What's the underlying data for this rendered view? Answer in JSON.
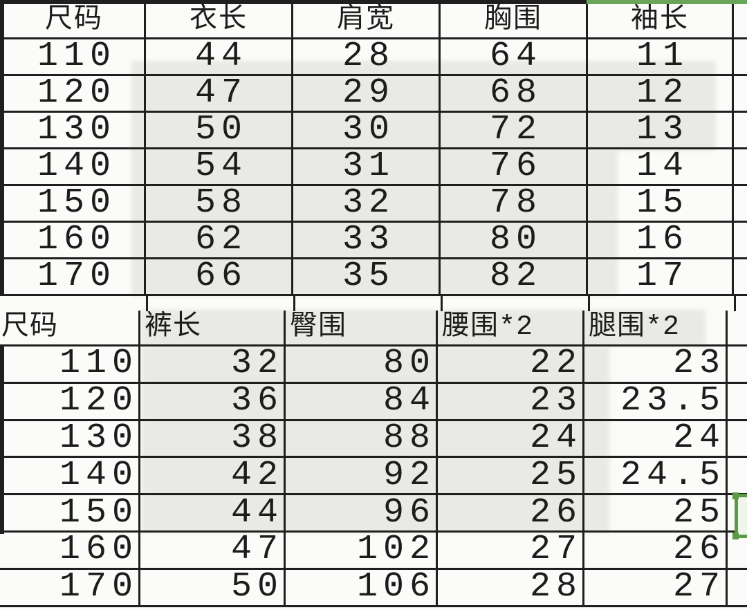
{
  "colors": {
    "grid_line": "#1f1f1f",
    "background": "#fbfbf9",
    "scan_shade": "#e9e9e5",
    "selection_green": "#5b9a47",
    "selection_fill": "#f0f5ec",
    "text": "#1c1c1c"
  },
  "chart_data": [
    {
      "type": "table",
      "columns": [
        "尺码",
        "衣长",
        "肩宽",
        "胸围",
        "袖长"
      ],
      "rows": [
        [
          "110",
          "44",
          "28",
          "64",
          "11"
        ],
        [
          "120",
          "47",
          "29",
          "68",
          "12"
        ],
        [
          "130",
          "50",
          "30",
          "72",
          "13"
        ],
        [
          "140",
          "54",
          "31",
          "76",
          "14"
        ],
        [
          "150",
          "58",
          "32",
          "78",
          "15"
        ],
        [
          "160",
          "62",
          "33",
          "80",
          "16"
        ],
        [
          "170",
          "66",
          "35",
          "82",
          "17"
        ]
      ],
      "layout_hints": {
        "text_align": "center",
        "header_row": true,
        "grid": true
      }
    },
    {
      "type": "table",
      "columns": [
        "尺码",
        "裤长",
        "臀围",
        "腰围*2",
        "腿围*2"
      ],
      "rows": [
        [
          "110",
          "32",
          "80",
          "22",
          "23"
        ],
        [
          "120",
          "36",
          "84",
          "23",
          "23.5"
        ],
        [
          "130",
          "38",
          "88",
          "24",
          "24"
        ],
        [
          "140",
          "42",
          "92",
          "25",
          "24.5"
        ],
        [
          "150",
          "44",
          "96",
          "26",
          "25"
        ],
        [
          "160",
          "47",
          "102",
          "27",
          "26"
        ],
        [
          "170",
          "50",
          "106",
          "28",
          "27"
        ]
      ],
      "layout_hints": {
        "header_align": "left",
        "value_align": "right",
        "header_row": true,
        "grid": true
      }
    }
  ],
  "selection": {
    "note_color": "#5b9a47"
  }
}
